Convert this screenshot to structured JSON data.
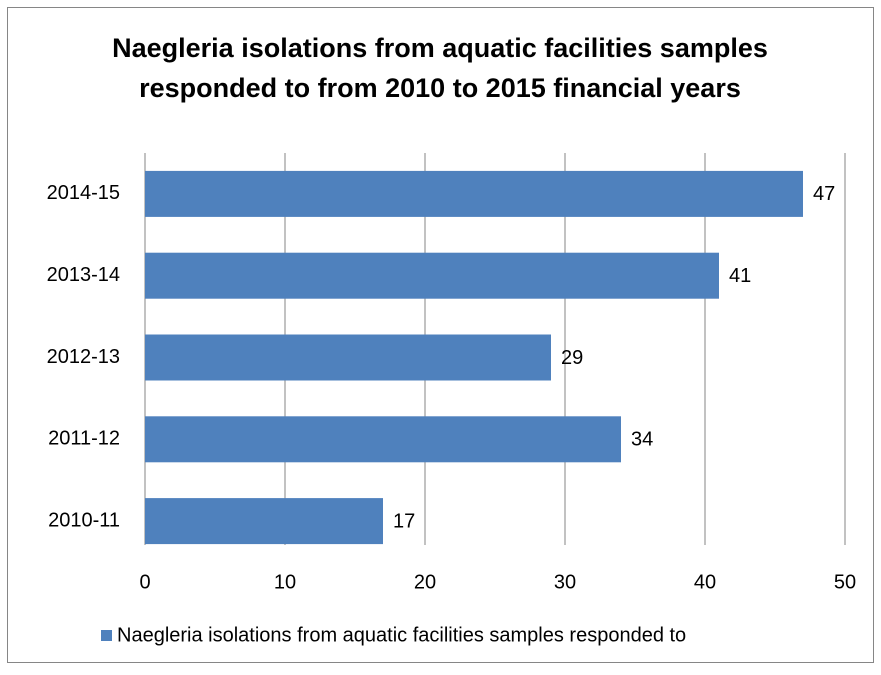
{
  "chart_data": {
    "type": "barh",
    "title": [
      "Naegleria isolations from aquatic facilities samples",
      "responded to from 2010 to 2015 financial years"
    ],
    "categories": [
      "2014-15",
      "2013-14",
      "2012-13",
      "2011-12",
      "2010-11"
    ],
    "series": [
      {
        "name": "Naegleria isolations from aquatic facilities samples responded to",
        "color": "#4f81bd",
        "values": [
          47,
          41,
          29,
          34,
          17
        ]
      }
    ],
    "xlim": [
      0,
      50
    ],
    "xticks": [
      0,
      10,
      20,
      30,
      40,
      50
    ],
    "grid": true,
    "legend": "bottom"
  }
}
